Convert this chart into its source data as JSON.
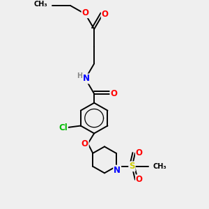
{
  "bg_color": "#efefef",
  "atom_colors": {
    "C": "#000000",
    "O": "#ff0000",
    "N": "#0000ff",
    "Cl": "#00bb00",
    "S": "#cccc00",
    "H": "#888888"
  },
  "bond_color": "#000000",
  "bond_width": 1.4,
  "font_size_atom": 8.5
}
